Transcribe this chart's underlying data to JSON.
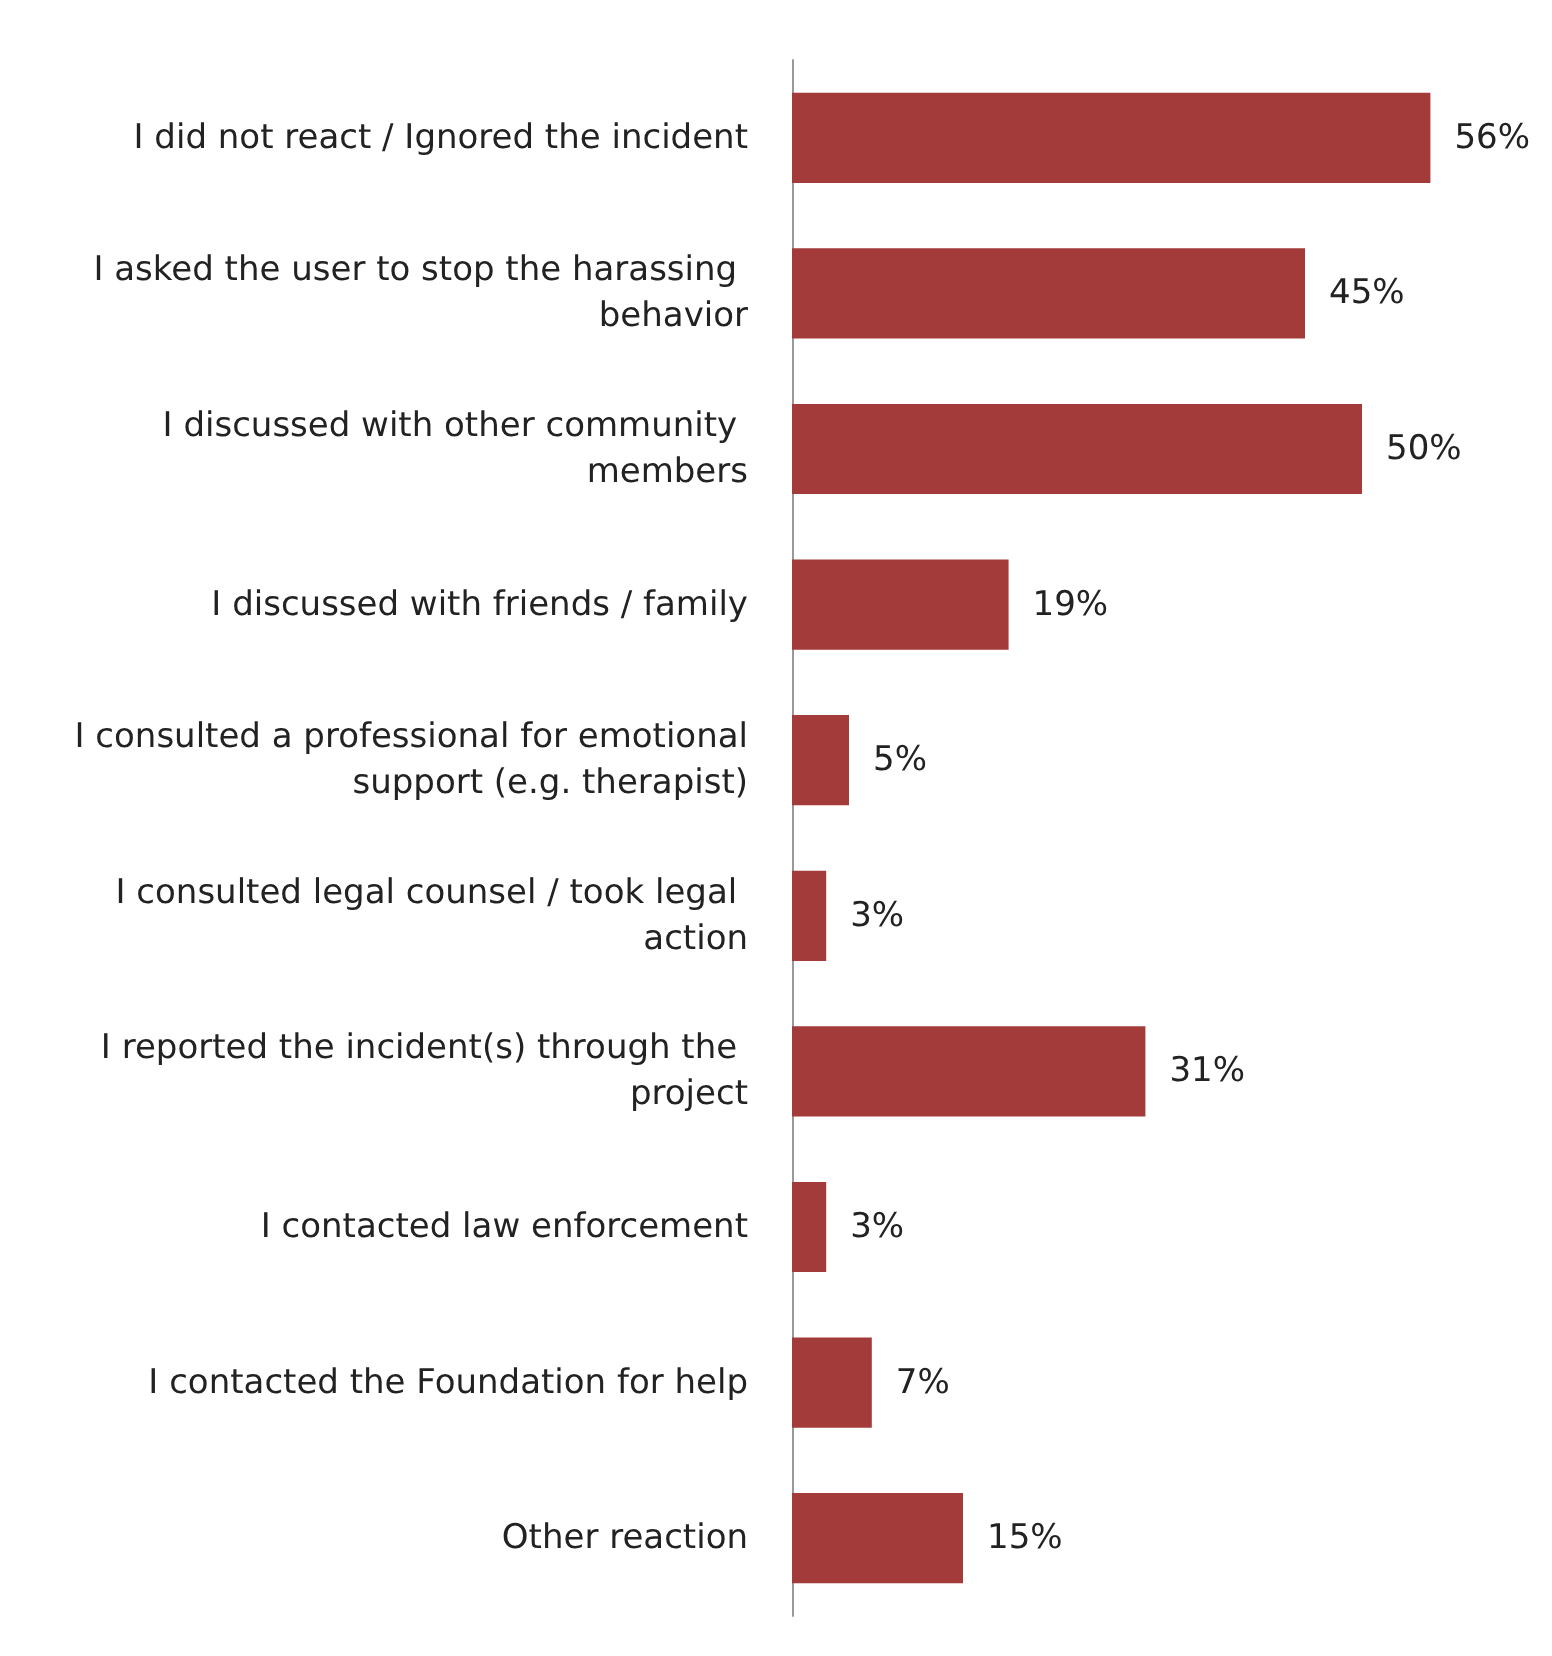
{
  "chart_data": {
    "type": "bar",
    "orientation": "horizontal",
    "categories": [
      "I did not react / Ignored the incident",
      "I asked the user to stop the harassing behavior",
      "I discussed with other community members",
      "I discussed with friends / family",
      "I consulted a professional for emotional support (e.g. therapist)",
      "I consulted legal counsel / took legal action",
      "I reported the incident(s) through the project",
      "I contacted law enforcement",
      "I contacted the Foundation for help",
      "Other reaction"
    ],
    "values": [
      56,
      45,
      50,
      19,
      5,
      3,
      31,
      3,
      7,
      15
    ],
    "value_labels": [
      "56%",
      "45%",
      "50%",
      "19%",
      "5%",
      "3%",
      "31%",
      "3%",
      "7%",
      "15%"
    ],
    "color": "#a33b3b"
  }
}
